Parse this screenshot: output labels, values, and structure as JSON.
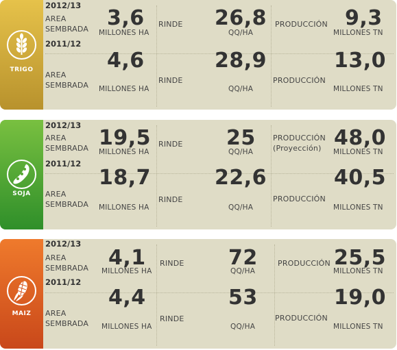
{
  "panels": [
    {
      "crop": "TRIGO",
      "icon": "wheat-icon",
      "color_top": "#e6c24a",
      "color_bottom": "#b8922d",
      "rows": [
        {
          "year": "2012/13",
          "area_label": [
            "AREA",
            "SEMBRADA"
          ],
          "area": "3,6",
          "area_unit": "MILLONES HA",
          "rinde_label": "RINDE",
          "rinde": "26,8",
          "rinde_unit": "QQ/HA",
          "prod_label": "PRODUCCIÓN",
          "prod_note": "",
          "prod": "9,3",
          "prod_unit": "MILLONES TN"
        },
        {
          "year": "2011/12",
          "area_label": [
            "AREA",
            "SEMBRADA"
          ],
          "area": "4,6",
          "area_unit": "MILLONES HA",
          "rinde_label": "RINDE",
          "rinde": "28,9",
          "rinde_unit": "QQ/HA",
          "prod_label": "PRODUCCIÓN",
          "prod_note": "",
          "prod": "13,0",
          "prod_unit": "MILLONES TN"
        }
      ]
    },
    {
      "crop": "SOJA",
      "icon": "soybean-icon",
      "color_top": "#79c040",
      "color_bottom": "#2f8f2a",
      "rows": [
        {
          "year": "2012/13",
          "area_label": [
            "AREA",
            "SEMBRADA"
          ],
          "area": "19,5",
          "area_unit": "MILLONES HA",
          "rinde_label": "RINDE",
          "rinde": "25",
          "rinde_unit": "QQ/HA",
          "prod_label": "PRODUCCIÓN",
          "prod_note": "(Proyección)",
          "prod": "48,0",
          "prod_unit": "MILLONES TN"
        },
        {
          "year": "2011/12",
          "area_label": [
            "AREA",
            "SEMBRADA"
          ],
          "area": "18,7",
          "area_unit": "MILLONES HA",
          "rinde_label": "RINDE",
          "rinde": "22,6",
          "rinde_unit": "QQ/HA",
          "prod_label": "PRODUCCIÓN",
          "prod_note": "",
          "prod": "40,5",
          "prod_unit": "MILLONES TN"
        }
      ]
    },
    {
      "crop": "MAIZ",
      "icon": "corn-icon",
      "color_top": "#ef7a2c",
      "color_bottom": "#c9481a",
      "rows": [
        {
          "year": "2012/13",
          "area_label": [
            "AREA",
            "SEMBRADA"
          ],
          "area": "4,1",
          "area_unit": "MILLONES HA",
          "rinde_label": "RINDE",
          "rinde": "72",
          "rinde_unit": "QQ/HA",
          "prod_label": "PRODUCCIÓN",
          "prod_note": "",
          "prod": "25,5",
          "prod_unit": "MILLONES TN"
        },
        {
          "year": "2011/12",
          "area_label": [
            "AREA",
            "SEMBRADA"
          ],
          "area": "4,4",
          "area_unit": "MILLONES HA",
          "rinde_label": "RINDE",
          "rinde": "53",
          "rinde_unit": "QQ/HA",
          "prod_label": "PRODUCCIÓN",
          "prod_note": "",
          "prod": "19,0",
          "prod_unit": "MILLONES TN"
        }
      ]
    }
  ]
}
